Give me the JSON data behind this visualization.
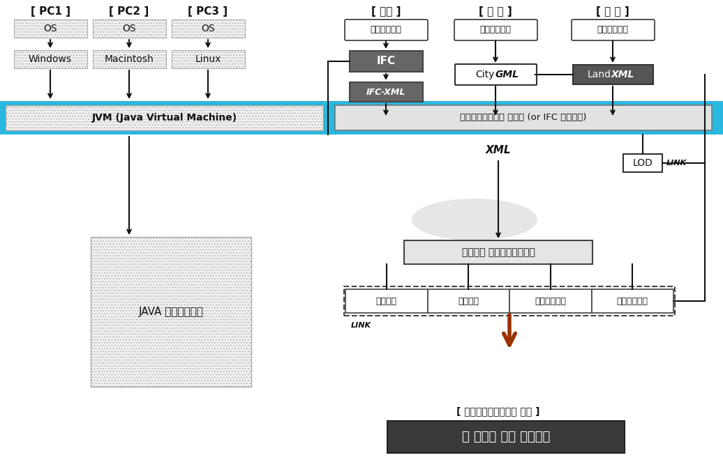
{
  "bg_color": "#ffffff",
  "cyan_color": "#29b8e0",
  "dark_gray": "#555555",
  "mid_gray": "#888888",
  "light_gray_hatch": "#d8d8d8",
  "white": "#ffffff",
  "pc_labels": [
    "[ PC1 ]",
    "[ PC2 ]",
    "[ PC3 ]"
  ],
  "arch_labels": [
    "[ 건축 ]",
    "[ 도 시 ]",
    "[ 토 목 ]"
  ],
  "jvm_label": "JVM (Java Virtual Machine)",
  "converter_label": "건축도시통합모델 컨버터 (or IFC 통합개발)",
  "ibum_label": "객체기반 건축도시통합모델",
  "java_app_label": "JAVA 어플리케이션",
  "bigdata_label": "빅 데이터 기반 공간분석",
  "bigdata_subtitle": "[ 건축도시통합모델의 활용 ]",
  "xml_label": "XML",
  "link_label": "LINK",
  "lod_label": "LOD",
  "ifc_label": "IFC",
  "ifcxml_label": "IFC-XML",
  "kijun_label": "기존작업방식",
  "sub_boxes": [
    "지리정보",
    "건축정보",
    "실내공간정보",
    "실외공간정보"
  ],
  "os_label": "OS",
  "windows_label": "Windows",
  "macintosh_label": "Macintosh",
  "linux_label": "Linux",
  "city_label": "City",
  "gml_label": "GML",
  "land_label": "Land",
  "xmlitalic_label": "XML"
}
